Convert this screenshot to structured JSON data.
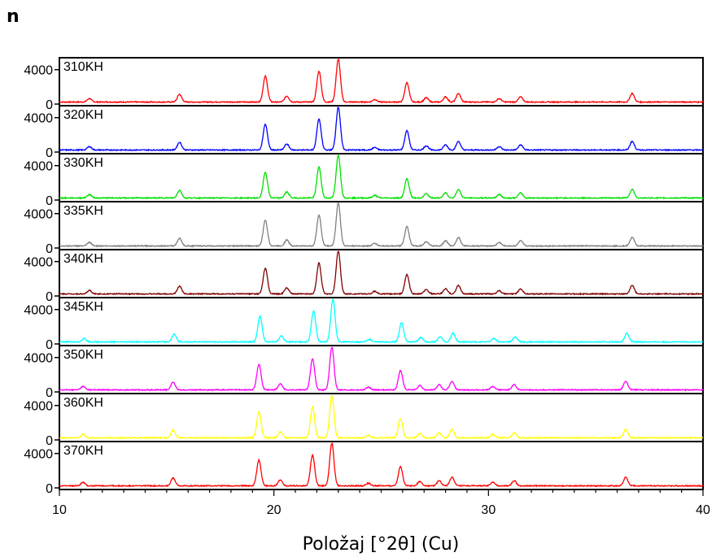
{
  "panel_letter": "n",
  "chart_data": {
    "type": "line",
    "layout": "stacked",
    "xlabel": "Položaj [°2θ] (Cu)",
    "ylabel": "",
    "xlim": [
      10,
      40
    ],
    "ylim": [
      0,
      5200
    ],
    "x_ticks": [
      10,
      20,
      30,
      40
    ],
    "y_ticks": [
      0,
      4000
    ],
    "grid": false,
    "peaks": [
      [
        11.4,
        0.08
      ],
      [
        15.6,
        0.18
      ],
      [
        19.6,
        0.6
      ],
      [
        20.6,
        0.14
      ],
      [
        22.1,
        0.72
      ],
      [
        23.0,
        1.0
      ],
      [
        24.7,
        0.06
      ],
      [
        26.2,
        0.45
      ],
      [
        27.1,
        0.1
      ],
      [
        28.0,
        0.12
      ],
      [
        28.6,
        0.2
      ],
      [
        30.5,
        0.08
      ],
      [
        31.5,
        0.12
      ],
      [
        36.7,
        0.2
      ]
    ],
    "series": [
      {
        "label": "310KH",
        "color": "#ff0000",
        "shift": 0.0,
        "peak_max": 5000
      },
      {
        "label": "320KH",
        "color": "#0000ff",
        "shift": 0.0,
        "peak_max": 5000
      },
      {
        "label": "330KH",
        "color": "#00e000",
        "shift": 0.0,
        "peak_max": 5000
      },
      {
        "label": "335KH",
        "color": "#808080",
        "shift": 0.0,
        "peak_max": 5000
      },
      {
        "label": "340KH",
        "color": "#800000",
        "shift": 0.0,
        "peak_max": 5000
      },
      {
        "label": "345KH",
        "color": "#00ffff",
        "shift": -0.25,
        "peak_max": 5000
      },
      {
        "label": "350KH",
        "color": "#ff00ff",
        "shift": -0.3,
        "peak_max": 5000
      },
      {
        "label": "360KH",
        "color": "#ffff00",
        "shift": -0.3,
        "peak_max": 5000
      },
      {
        "label": "370KH",
        "color": "#ff0000",
        "shift": -0.3,
        "peak_max": 5000
      }
    ]
  }
}
